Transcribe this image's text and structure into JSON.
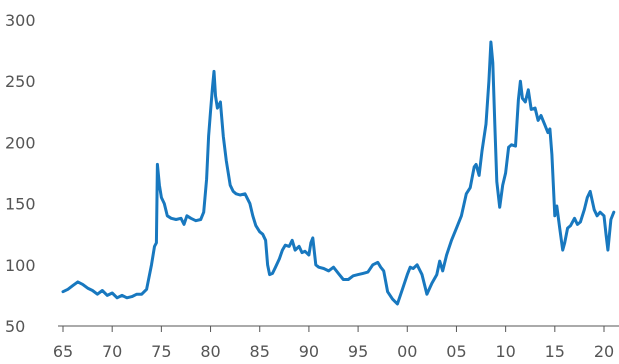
{
  "chart_data": {
    "type": "line",
    "title": "",
    "xlabel": "",
    "ylabel": "",
    "xlim": [
      1965,
      2021
    ],
    "ylim": [
      50,
      300
    ],
    "grid": false,
    "legend": "none",
    "x_ticks": [
      {
        "value": 1965,
        "label": "65"
      },
      {
        "value": 1970,
        "label": "70"
      },
      {
        "value": 1975,
        "label": "75"
      },
      {
        "value": 1980,
        "label": "80"
      },
      {
        "value": 1985,
        "label": "85"
      },
      {
        "value": 1990,
        "label": "90"
      },
      {
        "value": 1995,
        "label": "95"
      },
      {
        "value": 2000,
        "label": "00"
      },
      {
        "value": 2005,
        "label": "05"
      },
      {
        "value": 2010,
        "label": "10"
      },
      {
        "value": 2015,
        "label": "15"
      },
      {
        "value": 2020,
        "label": "20"
      }
    ],
    "y_ticks": [
      {
        "value": 50,
        "label": "50"
      },
      {
        "value": 100,
        "label": "100"
      },
      {
        "value": 150,
        "label": "150"
      },
      {
        "value": 200,
        "label": "200"
      },
      {
        "value": 250,
        "label": "250"
      },
      {
        "value": 300,
        "label": "300"
      }
    ],
    "series": [
      {
        "color": "#1878bf",
        "points": [
          [
            1965.0,
            78
          ],
          [
            1965.5,
            80
          ],
          [
            1966.0,
            83
          ],
          [
            1966.5,
            86
          ],
          [
            1967.0,
            84
          ],
          [
            1967.5,
            81
          ],
          [
            1968.0,
            79
          ],
          [
            1968.5,
            76
          ],
          [
            1969.0,
            79
          ],
          [
            1969.5,
            75
          ],
          [
            1970.0,
            77
          ],
          [
            1970.5,
            73
          ],
          [
            1971.0,
            75
          ],
          [
            1971.5,
            73
          ],
          [
            1972.0,
            74
          ],
          [
            1972.5,
            76
          ],
          [
            1973.0,
            76
          ],
          [
            1973.5,
            80
          ],
          [
            1974.0,
            100
          ],
          [
            1974.3,
            115
          ],
          [
            1974.5,
            118
          ],
          [
            1974.6,
            182
          ],
          [
            1974.8,
            165
          ],
          [
            1975.0,
            155
          ],
          [
            1975.3,
            150
          ],
          [
            1975.6,
            140
          ],
          [
            1976.0,
            138
          ],
          [
            1976.5,
            137
          ],
          [
            1977.0,
            138
          ],
          [
            1977.3,
            133
          ],
          [
            1977.6,
            140
          ],
          [
            1978.0,
            138
          ],
          [
            1978.5,
            136
          ],
          [
            1979.0,
            137
          ],
          [
            1979.3,
            143
          ],
          [
            1979.6,
            170
          ],
          [
            1979.8,
            205
          ],
          [
            1980.0,
            225
          ],
          [
            1980.2,
            245
          ],
          [
            1980.35,
            258
          ],
          [
            1980.5,
            238
          ],
          [
            1980.7,
            228
          ],
          [
            1981.0,
            233
          ],
          [
            1981.3,
            205
          ],
          [
            1981.6,
            185
          ],
          [
            1982.0,
            165
          ],
          [
            1982.3,
            160
          ],
          [
            1982.6,
            158
          ],
          [
            1983.0,
            157
          ],
          [
            1983.5,
            158
          ],
          [
            1984.0,
            150
          ],
          [
            1984.3,
            140
          ],
          [
            1984.6,
            132
          ],
          [
            1985.0,
            127
          ],
          [
            1985.3,
            125
          ],
          [
            1985.6,
            120
          ],
          [
            1985.8,
            100
          ],
          [
            1986.0,
            92
          ],
          [
            1986.3,
            93
          ],
          [
            1986.6,
            98
          ],
          [
            1987.0,
            105
          ],
          [
            1987.3,
            112
          ],
          [
            1987.6,
            116
          ],
          [
            1988.0,
            115
          ],
          [
            1988.3,
            120
          ],
          [
            1988.6,
            112
          ],
          [
            1989.0,
            115
          ],
          [
            1989.3,
            110
          ],
          [
            1989.6,
            111
          ],
          [
            1990.0,
            108
          ],
          [
            1990.2,
            118
          ],
          [
            1990.4,
            122
          ],
          [
            1990.7,
            100
          ],
          [
            1991.0,
            98
          ],
          [
            1991.5,
            97
          ],
          [
            1992.0,
            95
          ],
          [
            1992.5,
            98
          ],
          [
            1993.0,
            93
          ],
          [
            1993.5,
            88
          ],
          [
            1994.0,
            88
          ],
          [
            1994.5,
            91
          ],
          [
            1995.0,
            92
          ],
          [
            1995.5,
            93
          ],
          [
            1996.0,
            94
          ],
          [
            1996.5,
            100
          ],
          [
            1997.0,
            102
          ],
          [
            1997.3,
            98
          ],
          [
            1997.6,
            95
          ],
          [
            1998.0,
            78
          ],
          [
            1998.5,
            72
          ],
          [
            1999.0,
            68
          ],
          [
            1999.5,
            80
          ],
          [
            2000.0,
            92
          ],
          [
            2000.3,
            98
          ],
          [
            2000.6,
            97
          ],
          [
            2001.0,
            100
          ],
          [
            2001.5,
            92
          ],
          [
            2002.0,
            76
          ],
          [
            2002.5,
            85
          ],
          [
            2003.0,
            92
          ],
          [
            2003.3,
            103
          ],
          [
            2003.6,
            95
          ],
          [
            2004.0,
            108
          ],
          [
            2004.5,
            120
          ],
          [
            2005.0,
            130
          ],
          [
            2005.5,
            140
          ],
          [
            2006.0,
            158
          ],
          [
            2006.4,
            163
          ],
          [
            2006.8,
            180
          ],
          [
            2007.0,
            182
          ],
          [
            2007.3,
            173
          ],
          [
            2007.6,
            193
          ],
          [
            2008.0,
            215
          ],
          [
            2008.3,
            250
          ],
          [
            2008.5,
            282
          ],
          [
            2008.7,
            265
          ],
          [
            2008.9,
            215
          ],
          [
            2009.1,
            168
          ],
          [
            2009.4,
            147
          ],
          [
            2009.7,
            165
          ],
          [
            2010.0,
            175
          ],
          [
            2010.3,
            196
          ],
          [
            2010.6,
            198
          ],
          [
            2011.0,
            197
          ],
          [
            2011.3,
            235
          ],
          [
            2011.5,
            250
          ],
          [
            2011.7,
            236
          ],
          [
            2012.0,
            233
          ],
          [
            2012.3,
            243
          ],
          [
            2012.6,
            227
          ],
          [
            2013.0,
            228
          ],
          [
            2013.3,
            218
          ],
          [
            2013.6,
            222
          ],
          [
            2014.0,
            214
          ],
          [
            2014.3,
            208
          ],
          [
            2014.5,
            211
          ],
          [
            2014.7,
            190
          ],
          [
            2015.0,
            140
          ],
          [
            2015.2,
            148
          ],
          [
            2015.5,
            130
          ],
          [
            2015.8,
            112
          ],
          [
            2016.0,
            118
          ],
          [
            2016.3,
            130
          ],
          [
            2016.6,
            132
          ],
          [
            2017.0,
            138
          ],
          [
            2017.3,
            133
          ],
          [
            2017.6,
            135
          ],
          [
            2018.0,
            145
          ],
          [
            2018.3,
            155
          ],
          [
            2018.6,
            160
          ],
          [
            2019.0,
            145
          ],
          [
            2019.3,
            140
          ],
          [
            2019.6,
            143
          ],
          [
            2020.0,
            140
          ],
          [
            2020.2,
            125
          ],
          [
            2020.4,
            112
          ],
          [
            2020.7,
            137
          ],
          [
            2021.0,
            143
          ]
        ]
      }
    ]
  }
}
